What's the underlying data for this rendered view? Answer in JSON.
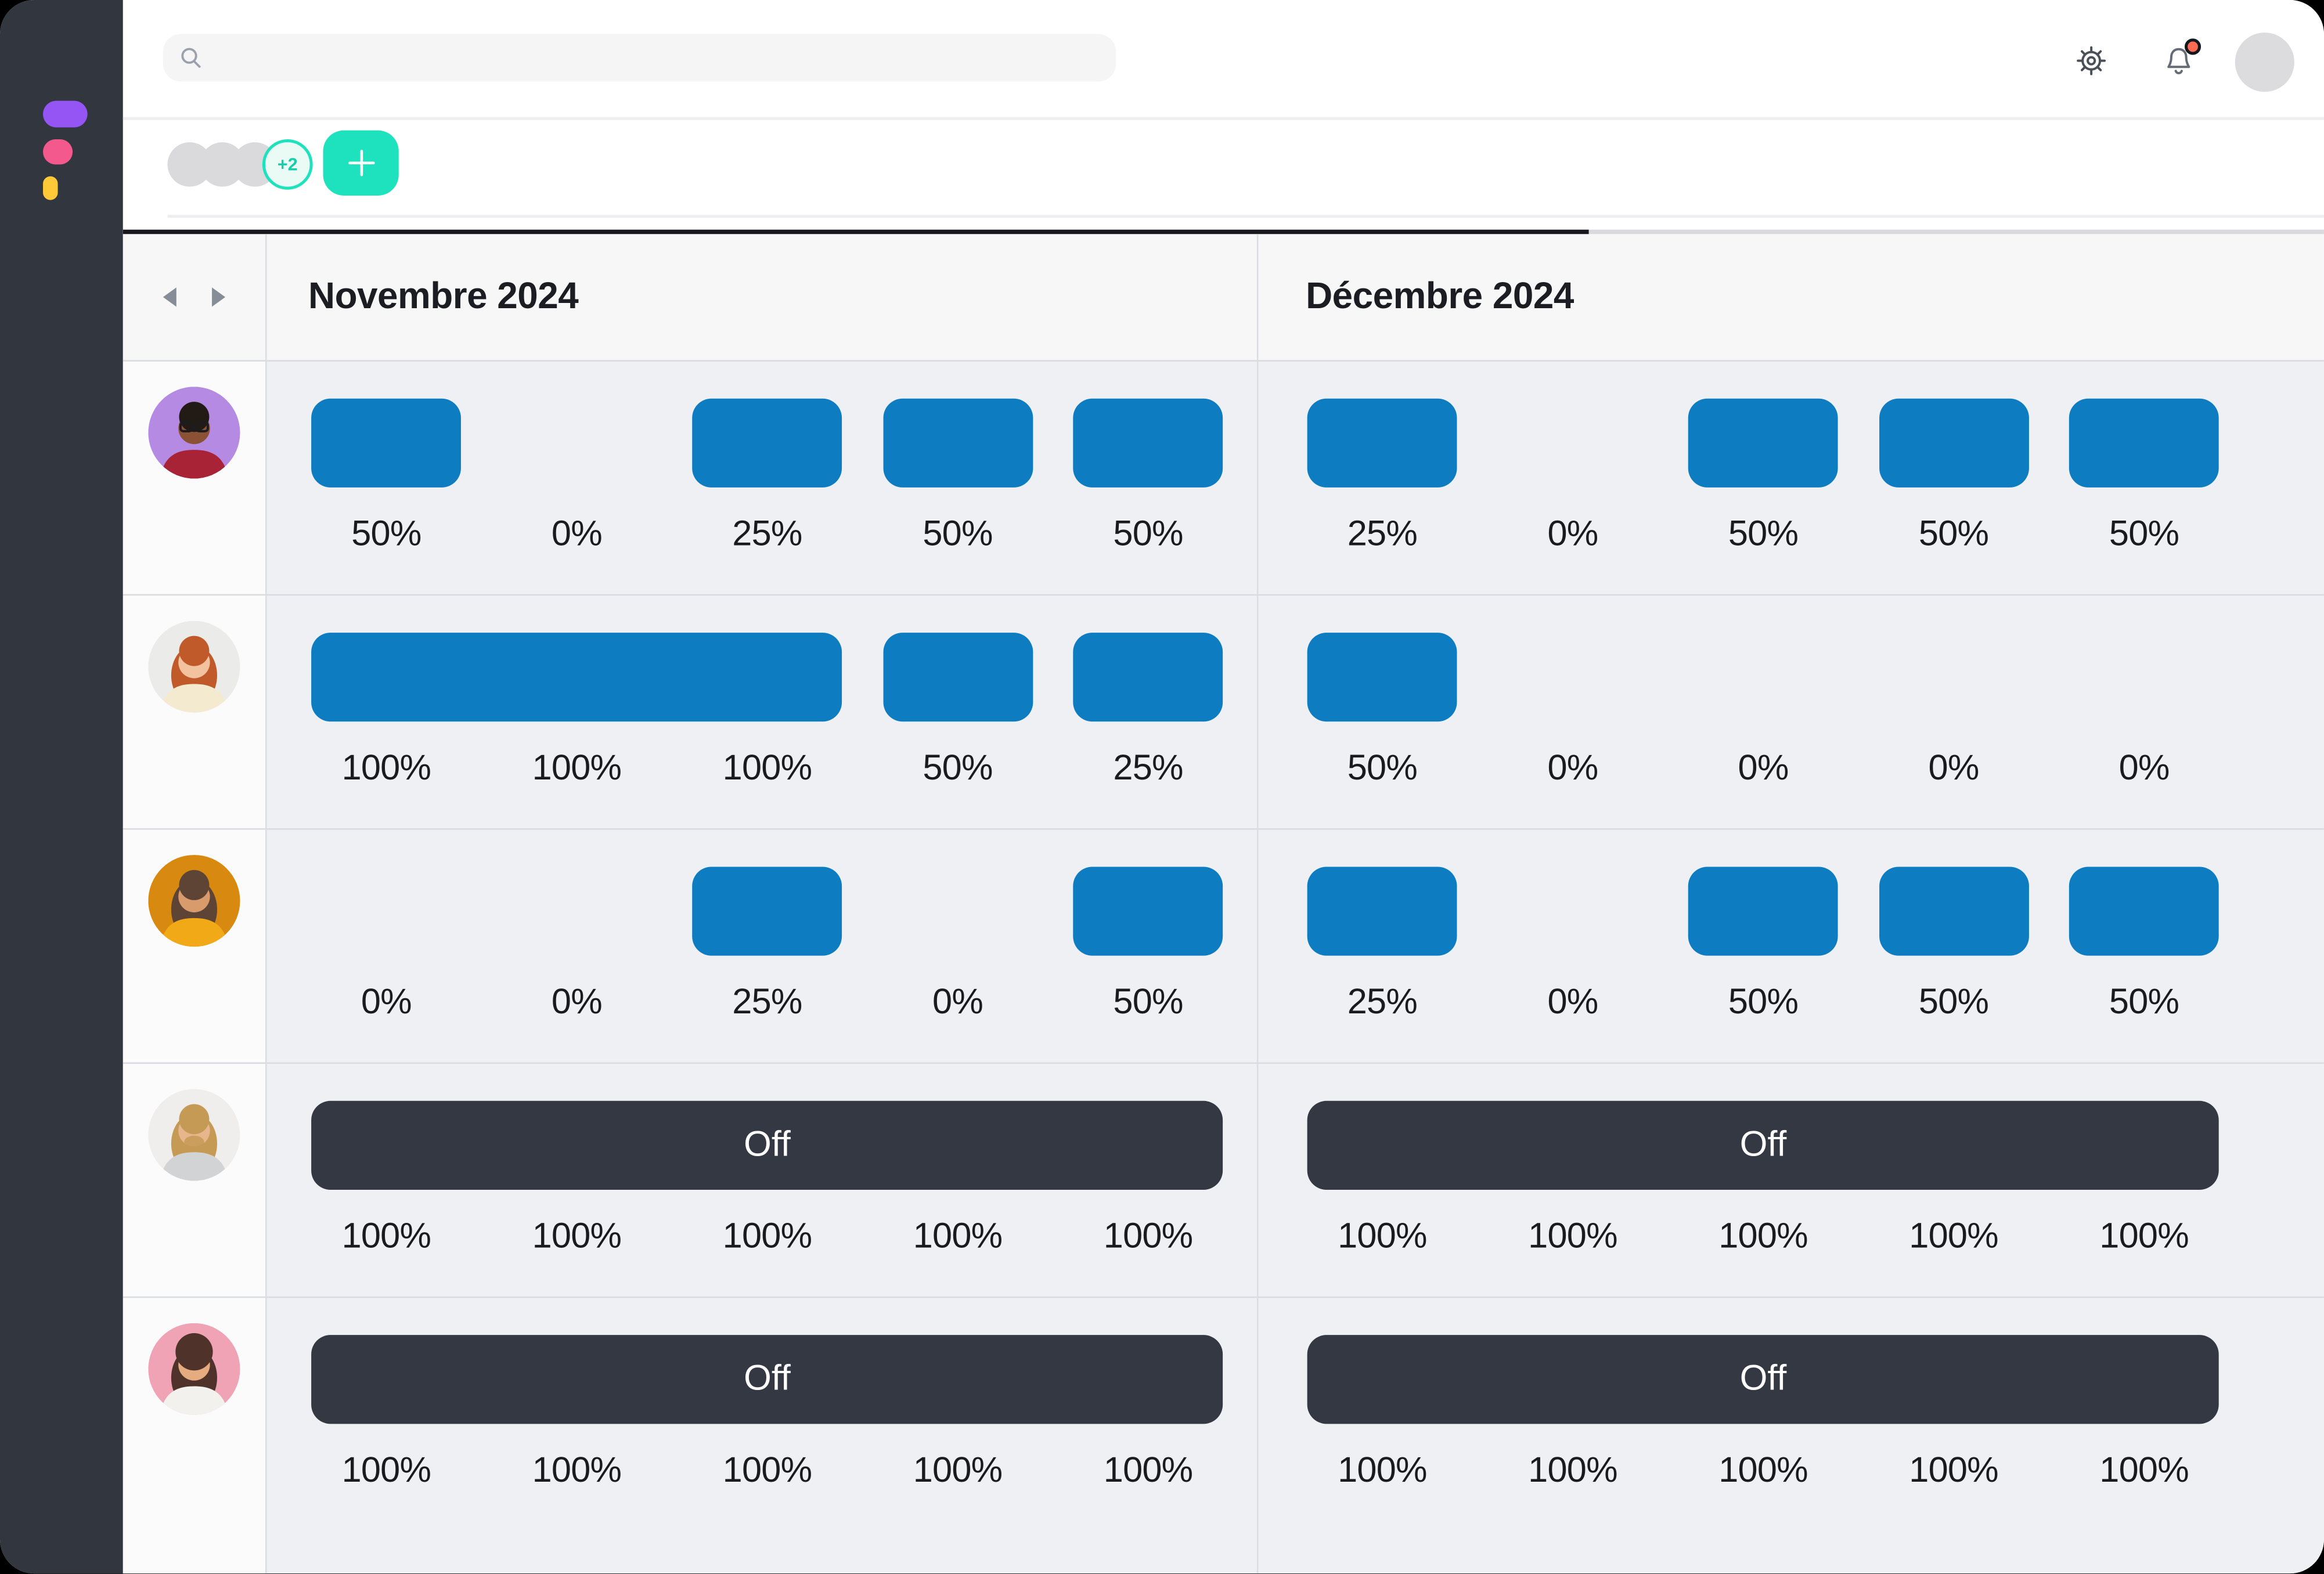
{
  "topbar": {
    "search_placeholder": "",
    "search_value": ""
  },
  "toolbar": {
    "extra_count": "+2",
    "add_label": "+"
  },
  "colors": {
    "accent_teal": "#1ee2be",
    "bar_blue": "#0e7cc1",
    "off_dark": "#343842",
    "sidebar_dark": "#32363e",
    "notification_red": "#fb6a52",
    "logo_purple": "#9455f4",
    "logo_pink": "#f4598e",
    "logo_yellow": "#ffc937"
  },
  "grid": {
    "months": [
      "Novembre 2024",
      "Décembre 2024"
    ],
    "off_label": "Off",
    "columns_per_month": 5,
    "rows": [
      {
        "user": "member-1",
        "avatar": {
          "bg": "#b48ae2",
          "skin": "#8a5134",
          "hair": "#221b15",
          "shirt": "#a82335",
          "glasses": true,
          "long": false,
          "beard": false,
          "big": false
        },
        "months": [
          {
            "labels": [
              "50%",
              "0%",
              "25%",
              "50%",
              "50%"
            ],
            "bars": [
              {
                "col": 0,
                "span": 1,
                "type": "allocation"
              },
              {
                "col": 2,
                "span": 1,
                "type": "allocation"
              },
              {
                "col": 3,
                "span": 1,
                "type": "allocation"
              },
              {
                "col": 4,
                "span": 1,
                "type": "allocation"
              }
            ]
          },
          {
            "labels": [
              "25%",
              "0%",
              "50%",
              "50%",
              "50%"
            ],
            "bars": [
              {
                "col": 0,
                "span": 1,
                "type": "allocation"
              },
              {
                "col": 2,
                "span": 1,
                "type": "allocation"
              },
              {
                "col": 3,
                "span": 1,
                "type": "allocation"
              },
              {
                "col": 4,
                "span": 1,
                "type": "allocation"
              }
            ]
          }
        ]
      },
      {
        "user": "member-2",
        "avatar": {
          "bg": "#ebebe9",
          "skin": "#f2c39e",
          "hair": "#c05a2a",
          "shirt": "#f3ead0",
          "glasses": false,
          "long": true,
          "beard": false,
          "big": false
        },
        "months": [
          {
            "labels": [
              "100%",
              "100%",
              "100%",
              "50%",
              "25%"
            ],
            "bars": [
              {
                "col": 0,
                "span": 3,
                "type": "allocation"
              },
              {
                "col": 3,
                "span": 1,
                "type": "allocation"
              },
              {
                "col": 4,
                "span": 1,
                "type": "allocation"
              }
            ]
          },
          {
            "labels": [
              "50%",
              "0%",
              "0%",
              "0%",
              "0%"
            ],
            "bars": [
              {
                "col": 0,
                "span": 1,
                "type": "allocation"
              }
            ]
          }
        ]
      },
      {
        "user": "member-3",
        "avatar": {
          "bg": "#d8890f",
          "skin": "#d89b6b",
          "hair": "#5d4434",
          "shirt": "#f2a918",
          "glasses": false,
          "long": true,
          "beard": false,
          "big": false
        },
        "months": [
          {
            "labels": [
              "0%",
              "0%",
              "25%",
              "0%",
              "50%"
            ],
            "bars": [
              {
                "col": 2,
                "span": 1,
                "type": "allocation"
              },
              {
                "col": 4,
                "span": 1,
                "type": "allocation"
              }
            ]
          },
          {
            "labels": [
              "25%",
              "0%",
              "50%",
              "50%",
              "50%"
            ],
            "bars": [
              {
                "col": 0,
                "span": 1,
                "type": "allocation"
              },
              {
                "col": 2,
                "span": 1,
                "type": "allocation"
              },
              {
                "col": 3,
                "span": 1,
                "type": "allocation"
              },
              {
                "col": 4,
                "span": 1,
                "type": "allocation"
              }
            ]
          }
        ]
      },
      {
        "user": "member-4",
        "avatar": {
          "bg": "#efeeec",
          "skin": "#e7b68d",
          "hair": "#c59a55",
          "shirt": "#d2d3d5",
          "glasses": false,
          "long": true,
          "beard": true,
          "big": false
        },
        "months": [
          {
            "labels": [
              "100%",
              "100%",
              "100%",
              "100%",
              "100%"
            ],
            "bars": [
              {
                "col": 0,
                "span": 5,
                "type": "off"
              }
            ]
          },
          {
            "labels": [
              "100%",
              "100%",
              "100%",
              "100%",
              "100%"
            ],
            "bars": [
              {
                "col": 0,
                "span": 5,
                "type": "off"
              }
            ]
          }
        ]
      },
      {
        "user": "member-5",
        "avatar": {
          "bg": "#f0a3b4",
          "skin": "#e5ac80",
          "hair": "#4f332a",
          "shirt": "#f3f1ee",
          "glasses": false,
          "long": true,
          "beard": false,
          "big": true
        },
        "months": [
          {
            "labels": [
              "100%",
              "100%",
              "100%",
              "100%",
              "100%"
            ],
            "bars": [
              {
                "col": 0,
                "span": 5,
                "type": "off"
              }
            ]
          },
          {
            "labels": [
              "100%",
              "100%",
              "100%",
              "100%",
              "100%"
            ],
            "bars": [
              {
                "col": 0,
                "span": 5,
                "type": "off"
              }
            ]
          }
        ]
      }
    ]
  }
}
